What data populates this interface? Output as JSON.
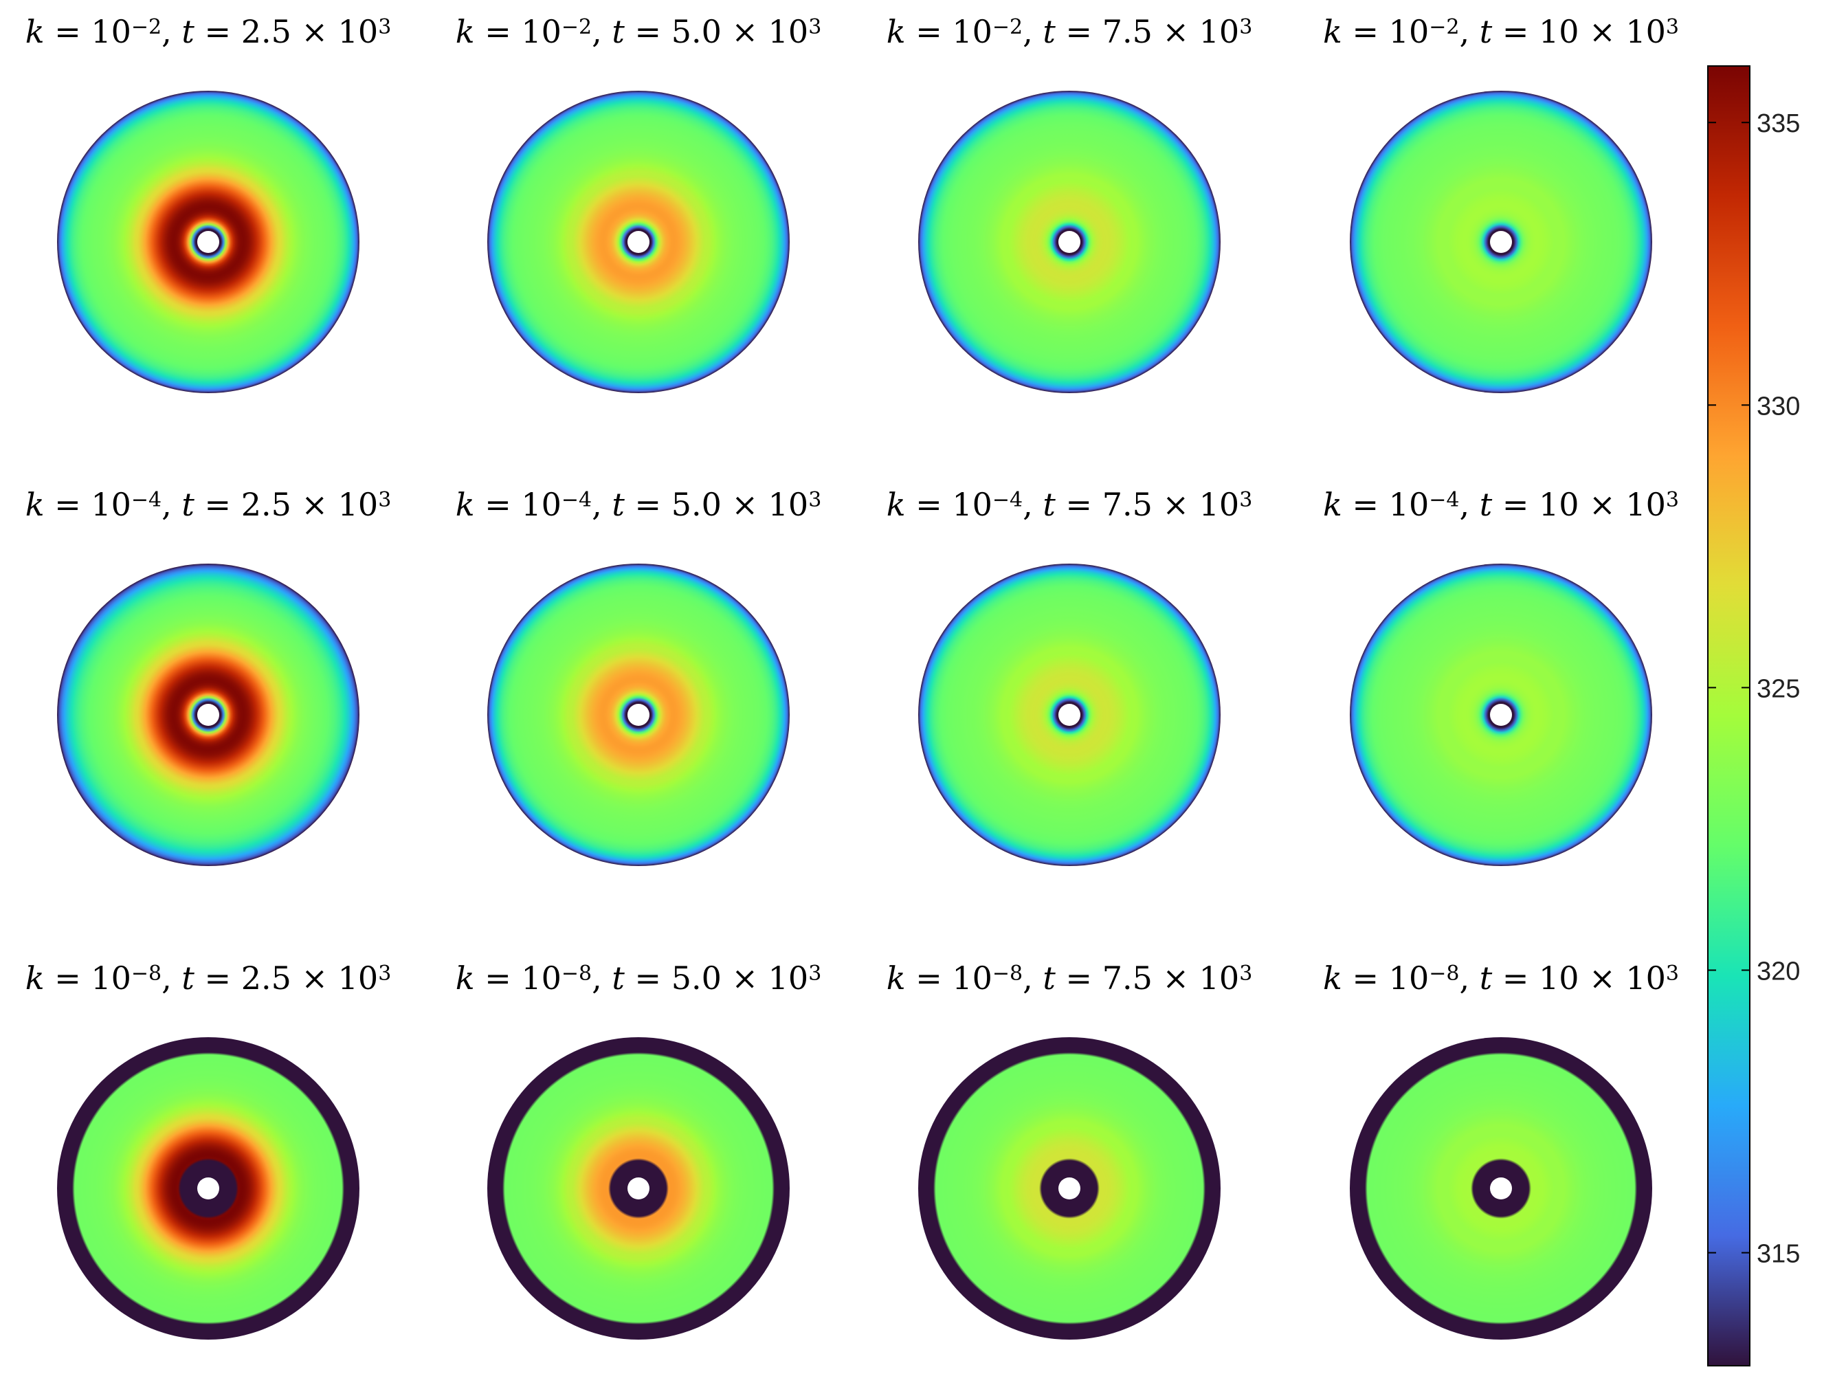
{
  "chart_data": {
    "type": "heatmap",
    "panels": [
      {
        "k": "10",
        "k_exp": "−2",
        "t_value": "2.5",
        "t_exp": "3",
        "peak": 336.0,
        "edge_scale": 0.055,
        "ring": false
      },
      {
        "k": "10",
        "k_exp": "−2",
        "t_value": "5.0",
        "t_exp": "3",
        "peak": 329.5,
        "edge_scale": 0.055,
        "ring": false
      },
      {
        "k": "10",
        "k_exp": "−2",
        "t_value": "7.5",
        "t_exp": "3",
        "peak": 326.2,
        "edge_scale": 0.055,
        "ring": false
      },
      {
        "k": "10",
        "k_exp": "−2",
        "t_value": "10",
        "t_exp": "3",
        "peak": 324.6,
        "edge_scale": 0.055,
        "ring": false
      },
      {
        "k": "10",
        "k_exp": "−4",
        "t_value": "2.5",
        "t_exp": "3",
        "peak": 336.0,
        "edge_scale": 0.075,
        "ring": false
      },
      {
        "k": "10",
        "k_exp": "−4",
        "t_value": "5.0",
        "t_exp": "3",
        "peak": 329.5,
        "edge_scale": 0.05,
        "ring": false
      },
      {
        "k": "10",
        "k_exp": "−4",
        "t_value": "7.5",
        "t_exp": "3",
        "peak": 326.2,
        "edge_scale": 0.05,
        "ring": false
      },
      {
        "k": "10",
        "k_exp": "−4",
        "t_value": "10",
        "t_exp": "3",
        "peak": 324.6,
        "edge_scale": 0.05,
        "ring": false
      },
      {
        "k": "10",
        "k_exp": "−8",
        "t_value": "2.5",
        "t_exp": "3",
        "peak": 336.0,
        "edge_scale": 0.0,
        "ring": true
      },
      {
        "k": "10",
        "k_exp": "−8",
        "t_value": "5.0",
        "t_exp": "3",
        "peak": 329.5,
        "edge_scale": 0.0,
        "ring": true
      },
      {
        "k": "10",
        "k_exp": "−8",
        "t_value": "7.5",
        "t_exp": "3",
        "peak": 326.2,
        "edge_scale": 0.0,
        "ring": true
      },
      {
        "k": "10",
        "k_exp": "−8",
        "t_value": "10",
        "t_exp": "3",
        "peak": 324.6,
        "edge_scale": 0.0,
        "ring": true
      }
    ],
    "colorbar": {
      "colormap": "turbo",
      "range": [
        313,
        336
      ],
      "ticks": [
        315,
        320,
        325,
        330,
        335
      ],
      "tick_labels": [
        "315",
        "320",
        "325",
        "330",
        "335"
      ]
    },
    "boundary_value": 313,
    "grid": false
  }
}
